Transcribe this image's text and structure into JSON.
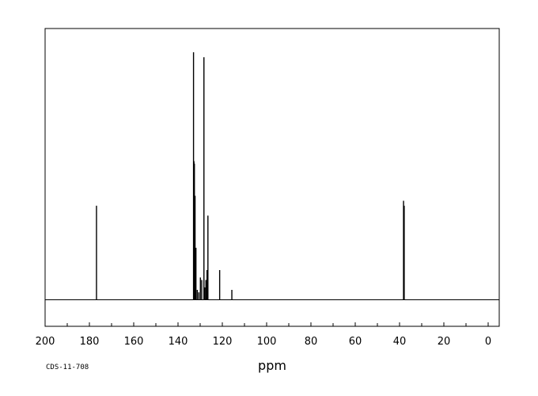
{
  "chart_data": {
    "type": "line",
    "title": "",
    "xlabel": "ppm",
    "ylabel": "",
    "code": "CDS-11-708",
    "xlim": [
      200,
      -5
    ],
    "x_reversed": true,
    "ylim": [
      0,
      1
    ],
    "grid": false,
    "legend": "none",
    "x_ticks": [
      200,
      180,
      160,
      140,
      120,
      100,
      80,
      60,
      40,
      20,
      0
    ],
    "x_minor_step": 10,
    "peaks": [
      {
        "ppm": 176.8,
        "intensity": 0.38
      },
      {
        "ppm": 133.0,
        "intensity": 1.0
      },
      {
        "ppm": 132.8,
        "intensity": 0.56
      },
      {
        "ppm": 132.6,
        "intensity": 0.55
      },
      {
        "ppm": 132.3,
        "intensity": 0.42
      },
      {
        "ppm": 131.9,
        "intensity": 0.21
      },
      {
        "ppm": 131.3,
        "intensity": 0.04
      },
      {
        "ppm": 130.6,
        "intensity": 0.03
      },
      {
        "ppm": 129.9,
        "intensity": 0.09
      },
      {
        "ppm": 129.3,
        "intensity": 0.08
      },
      {
        "ppm": 128.3,
        "intensity": 0.98
      },
      {
        "ppm": 127.9,
        "intensity": 0.05
      },
      {
        "ppm": 127.4,
        "intensity": 0.08
      },
      {
        "ppm": 126.9,
        "intensity": 0.12
      },
      {
        "ppm": 126.5,
        "intensity": 0.34
      },
      {
        "ppm": 121.2,
        "intensity": 0.12
      },
      {
        "ppm": 115.7,
        "intensity": 0.04
      },
      {
        "ppm": 38.2,
        "intensity": 0.4
      },
      {
        "ppm": 37.9,
        "intensity": 0.38
      }
    ]
  }
}
